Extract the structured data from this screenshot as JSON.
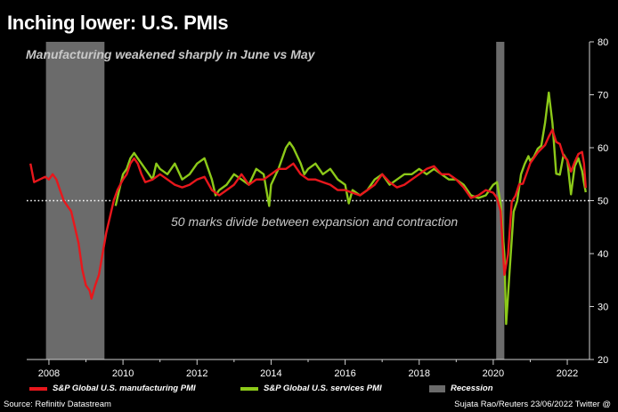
{
  "header": {
    "title": "Inching lower: U.S. PMIs",
    "subtitle": "Manufacturing weakened sharply in June vs May"
  },
  "annotation": "50 marks divide between expansion and contraction",
  "legend": {
    "manufacturing": "S&P Global U.S. manufacturing PMI",
    "services": "S&P Global U.S. services PMI",
    "recession": "Recession"
  },
  "footer": {
    "source": "Source: Refinitiv Datastream",
    "credit": "Sujata Rao/Reuters 23/06/2022 Twitter @"
  },
  "colors": {
    "manufacturing": "#e8171c",
    "services": "#8cc919",
    "recession": "#6b6b6b",
    "background": "#000000"
  },
  "chart_data": {
    "type": "line",
    "title": "Inching lower: U.S. PMIs",
    "xlim": [
      2007.4,
      2022.6
    ],
    "ylim": [
      20,
      80
    ],
    "x_ticks": [
      2008,
      2010,
      2012,
      2014,
      2016,
      2018,
      2020,
      2022
    ],
    "y_ticks": [
      20,
      30,
      40,
      50,
      60,
      70,
      80
    ],
    "reference_line": 50,
    "recessions": [
      [
        2007.92,
        2009.5
      ],
      [
        2020.08,
        2020.3
      ]
    ],
    "series": [
      {
        "name": "S&P Global U.S. manufacturing PMI",
        "key": "manufacturing",
        "points": [
          [
            2007.5,
            57
          ],
          [
            2007.6,
            53.5
          ],
          [
            2007.75,
            54
          ],
          [
            2007.9,
            54.5
          ],
          [
            2008.0,
            54
          ],
          [
            2008.1,
            55
          ],
          [
            2008.2,
            54
          ],
          [
            2008.3,
            52
          ],
          [
            2008.4,
            50
          ],
          [
            2008.5,
            49
          ],
          [
            2008.6,
            48
          ],
          [
            2008.7,
            45
          ],
          [
            2008.8,
            42
          ],
          [
            2008.9,
            37
          ],
          [
            2009.0,
            34
          ],
          [
            2009.1,
            33
          ],
          [
            2009.15,
            31.5
          ],
          [
            2009.25,
            34
          ],
          [
            2009.35,
            36
          ],
          [
            2009.45,
            40
          ],
          [
            2009.55,
            44
          ],
          [
            2009.65,
            47
          ],
          [
            2009.75,
            50
          ],
          [
            2009.85,
            52
          ],
          [
            2010.0,
            54
          ],
          [
            2010.1,
            55
          ],
          [
            2010.2,
            57
          ],
          [
            2010.3,
            58
          ],
          [
            2010.4,
            57
          ],
          [
            2010.5,
            55
          ],
          [
            2010.6,
            53.5
          ],
          [
            2010.8,
            54
          ],
          [
            2011.0,
            55
          ],
          [
            2011.2,
            54
          ],
          [
            2011.4,
            53
          ],
          [
            2011.6,
            52.5
          ],
          [
            2011.8,
            53
          ],
          [
            2012.0,
            54
          ],
          [
            2012.2,
            54.5
          ],
          [
            2012.4,
            52
          ],
          [
            2012.6,
            51
          ],
          [
            2012.8,
            52
          ],
          [
            2013.0,
            53
          ],
          [
            2013.2,
            55
          ],
          [
            2013.4,
            53
          ],
          [
            2013.6,
            54
          ],
          [
            2013.8,
            54
          ],
          [
            2014.0,
            55
          ],
          [
            2014.2,
            56
          ],
          [
            2014.4,
            56
          ],
          [
            2014.6,
            57
          ],
          [
            2014.8,
            55
          ],
          [
            2015.0,
            54
          ],
          [
            2015.2,
            54
          ],
          [
            2015.4,
            53.5
          ],
          [
            2015.6,
            53
          ],
          [
            2015.8,
            52
          ],
          [
            2016.0,
            52
          ],
          [
            2016.2,
            51.5
          ],
          [
            2016.4,
            51
          ],
          [
            2016.6,
            52
          ],
          [
            2016.8,
            53
          ],
          [
            2017.0,
            55
          ],
          [
            2017.2,
            53.5
          ],
          [
            2017.4,
            52.5
          ],
          [
            2017.6,
            53
          ],
          [
            2017.8,
            54
          ],
          [
            2018.0,
            55
          ],
          [
            2018.2,
            56
          ],
          [
            2018.4,
            56.5
          ],
          [
            2018.6,
            55
          ],
          [
            2018.8,
            55
          ],
          [
            2019.0,
            54
          ],
          [
            2019.2,
            52.5
          ],
          [
            2019.4,
            50.5
          ],
          [
            2019.6,
            51
          ],
          [
            2019.8,
            52
          ],
          [
            2020.0,
            51.5
          ],
          [
            2020.1,
            50.5
          ],
          [
            2020.2,
            48
          ],
          [
            2020.3,
            36
          ],
          [
            2020.4,
            39.8
          ],
          [
            2020.5,
            49.8
          ],
          [
            2020.6,
            50.9
          ],
          [
            2020.7,
            53.1
          ],
          [
            2020.8,
            53.2
          ],
          [
            2021.0,
            57.1
          ],
          [
            2021.2,
            59.1
          ],
          [
            2021.4,
            60.5
          ],
          [
            2021.5,
            62.1
          ],
          [
            2021.6,
            63.4
          ],
          [
            2021.7,
            61.1
          ],
          [
            2021.8,
            60.7
          ],
          [
            2021.9,
            58.4
          ],
          [
            2022.0,
            57.7
          ],
          [
            2022.1,
            55.5
          ],
          [
            2022.2,
            57.3
          ],
          [
            2022.3,
            58.8
          ],
          [
            2022.4,
            59.2
          ],
          [
            2022.45,
            57.0
          ],
          [
            2022.5,
            52.4
          ]
        ]
      },
      {
        "name": "S&P Global U.S. services PMI",
        "key": "services",
        "points": [
          [
            2009.8,
            49
          ],
          [
            2009.9,
            52
          ],
          [
            2010.0,
            55
          ],
          [
            2010.1,
            56
          ],
          [
            2010.2,
            58
          ],
          [
            2010.3,
            59
          ],
          [
            2010.4,
            58
          ],
          [
            2010.5,
            57
          ],
          [
            2010.6,
            56
          ],
          [
            2010.8,
            54
          ],
          [
            2010.9,
            57
          ],
          [
            2011.0,
            56
          ],
          [
            2011.2,
            55
          ],
          [
            2011.4,
            57
          ],
          [
            2011.6,
            54
          ],
          [
            2011.8,
            55
          ],
          [
            2012.0,
            57
          ],
          [
            2012.2,
            58
          ],
          [
            2012.4,
            54
          ],
          [
            2012.5,
            51
          ],
          [
            2012.6,
            52
          ],
          [
            2012.8,
            53
          ],
          [
            2013.0,
            55
          ],
          [
            2013.2,
            54
          ],
          [
            2013.4,
            53
          ],
          [
            2013.6,
            56
          ],
          [
            2013.8,
            55
          ],
          [
            2013.95,
            49
          ],
          [
            2014.0,
            53
          ],
          [
            2014.2,
            56
          ],
          [
            2014.4,
            60
          ],
          [
            2014.5,
            61
          ],
          [
            2014.6,
            60
          ],
          [
            2014.8,
            57
          ],
          [
            2014.9,
            55
          ],
          [
            2015.0,
            56
          ],
          [
            2015.2,
            57
          ],
          [
            2015.4,
            55
          ],
          [
            2015.6,
            56
          ],
          [
            2015.8,
            54
          ],
          [
            2016.0,
            53
          ],
          [
            2016.1,
            49.5
          ],
          [
            2016.2,
            52
          ],
          [
            2016.4,
            51
          ],
          [
            2016.6,
            52
          ],
          [
            2016.8,
            54
          ],
          [
            2017.0,
            55
          ],
          [
            2017.2,
            53
          ],
          [
            2017.4,
            54
          ],
          [
            2017.6,
            55
          ],
          [
            2017.8,
            55
          ],
          [
            2018.0,
            56
          ],
          [
            2018.2,
            55
          ],
          [
            2018.4,
            56
          ],
          [
            2018.6,
            55
          ],
          [
            2018.8,
            54
          ],
          [
            2019.0,
            54
          ],
          [
            2019.2,
            53
          ],
          [
            2019.4,
            51
          ],
          [
            2019.6,
            50.5
          ],
          [
            2019.8,
            51
          ],
          [
            2020.0,
            53
          ],
          [
            2020.1,
            53.5
          ],
          [
            2020.2,
            49.4
          ],
          [
            2020.3,
            39.8
          ],
          [
            2020.35,
            26.7
          ],
          [
            2020.45,
            37.5
          ],
          [
            2020.55,
            47.9
          ],
          [
            2020.65,
            50.0
          ],
          [
            2020.75,
            55.0
          ],
          [
            2020.85,
            56.9
          ],
          [
            2020.95,
            58.4
          ],
          [
            2021.0,
            57.5
          ],
          [
            2021.1,
            58.3
          ],
          [
            2021.2,
            59.8
          ],
          [
            2021.3,
            60.4
          ],
          [
            2021.4,
            64.7
          ],
          [
            2021.5,
            70.4
          ],
          [
            2021.6,
            64.6
          ],
          [
            2021.7,
            55.1
          ],
          [
            2021.8,
            54.9
          ],
          [
            2021.9,
            58.7
          ],
          [
            2022.0,
            57.6
          ],
          [
            2022.1,
            51.2
          ],
          [
            2022.2,
            56.5
          ],
          [
            2022.3,
            58.0
          ],
          [
            2022.4,
            55.6
          ],
          [
            2022.45,
            53.4
          ],
          [
            2022.5,
            51.6
          ]
        ]
      }
    ]
  }
}
